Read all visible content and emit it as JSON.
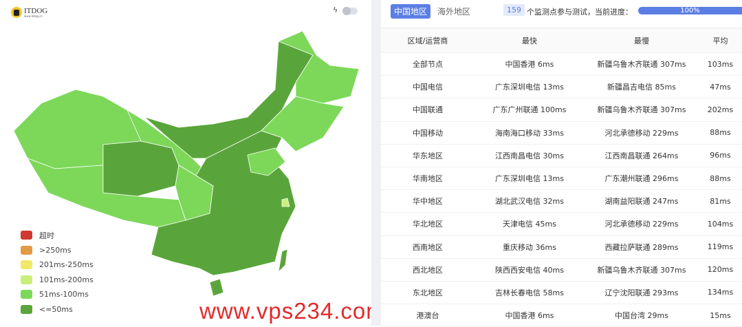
{
  "logo": {
    "text": "ITDOG",
    "sub": "www.itdog.cn"
  },
  "toolbar": {
    "bolt_icon": "lightning-icon",
    "toggle_on": false
  },
  "legend": [
    {
      "label": "超时",
      "color": "#d0392f"
    },
    {
      "label": ">250ms",
      "color": "#e39a45"
    },
    {
      "label": "201ms-250ms",
      "color": "#f2e86a"
    },
    {
      "label": "101ms-200ms",
      "color": "#c9ef7a"
    },
    {
      "label": "51ms-100ms",
      "color": "#7dd85a"
    },
    {
      "label": "<=50ms",
      "color": "#5aa53b"
    }
  ],
  "tabs": [
    {
      "label": "中国地区",
      "active": true
    },
    {
      "label": "海外地区",
      "active": false
    }
  ],
  "status": {
    "count": "159",
    "text": "个监测点参与测试，当前进度：",
    "progress": "100%"
  },
  "table": {
    "headers": [
      "区域/运营商",
      "最快",
      "最慢",
      "平均"
    ],
    "rows": [
      [
        "全部节点",
        "中国香港 6ms",
        "新疆乌鲁木齐联通 307ms",
        "103ms"
      ],
      [
        "中国电信",
        "广东深圳电信 13ms",
        "新疆昌吉电信 85ms",
        "47ms"
      ],
      [
        "中国联通",
        "广东广州联通 100ms",
        "新疆乌鲁木齐联通 307ms",
        "202ms"
      ],
      [
        "中国移动",
        "海南海口移动 33ms",
        "河北承德移动 229ms",
        "88ms"
      ],
      [
        "华东地区",
        "江西南昌电信 30ms",
        "江西南昌联通 264ms",
        "96ms"
      ],
      [
        "华南地区",
        "广东深圳电信 13ms",
        "广东潮州联通 296ms",
        "88ms"
      ],
      [
        "华中地区",
        "湖北武汉电信 32ms",
        "湖南益阳联通 247ms",
        "81ms"
      ],
      [
        "华北地区",
        "天津电信 45ms",
        "河北承德移动 229ms",
        "104ms"
      ],
      [
        "西南地区",
        "重庆移动 36ms",
        "西藏拉萨联通 289ms",
        "119ms"
      ],
      [
        "西北地区",
        "陕西西安电信 40ms",
        "新疆乌鲁木齐联通 307ms",
        "120ms"
      ],
      [
        "东北地区",
        "吉林长春电信 58ms",
        "辽宁沈阳联通 293ms",
        "134ms"
      ],
      [
        "港澳台",
        "中国香港 6ms",
        "中国台湾 29ms",
        "15ms"
      ]
    ]
  },
  "watermark": "www.vps234.com"
}
